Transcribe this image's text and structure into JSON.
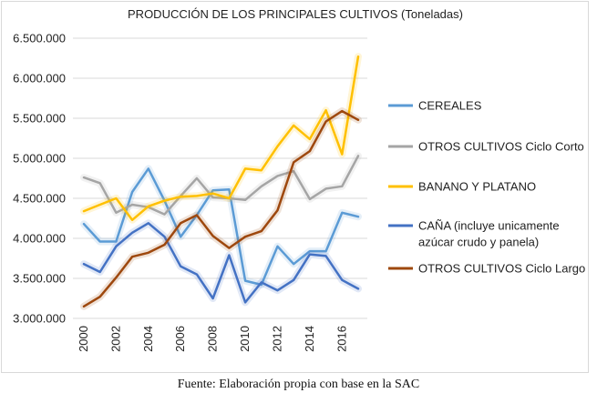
{
  "chart_data": {
    "type": "line",
    "title": "PRODUCCIÓN DE LOS PRINCIPALES CULTIVOS (Toneladas)",
    "x": [
      2000,
      2001,
      2002,
      2003,
      2004,
      2005,
      2006,
      2007,
      2008,
      2009,
      2010,
      2011,
      2012,
      2013,
      2014,
      2015,
      2016,
      2017
    ],
    "xticks": [
      "2000",
      "2002",
      "2004",
      "2006",
      "2008",
      "2010",
      "2012",
      "2014",
      "2016"
    ],
    "ylim": [
      3000000,
      6500000
    ],
    "yticks": [
      "3.000.000",
      "3.500.000",
      "4.000.000",
      "4.500.000",
      "5.000.000",
      "5.500.000",
      "6.000.000",
      "6.500.000"
    ],
    "grid": true,
    "legend_position": "right",
    "series": [
      {
        "name": "CEREALES",
        "color": "#5b9bd5",
        "values": [
          4180000,
          3960000,
          3960000,
          4580000,
          4870000,
          4470000,
          4020000,
          4290000,
          4600000,
          4610000,
          3470000,
          3420000,
          3900000,
          3680000,
          3840000,
          3840000,
          4320000,
          4270000
        ]
      },
      {
        "name": "OTROS CULTIVOS Ciclo Corto",
        "color": "#a5a5a5",
        "values": [
          4760000,
          4690000,
          4320000,
          4420000,
          4390000,
          4300000,
          4530000,
          4750000,
          4510000,
          4500000,
          4480000,
          4650000,
          4780000,
          4840000,
          4490000,
          4620000,
          4650000,
          5030000
        ]
      },
      {
        "name": "BANANO Y PLATANO",
        "color": "#ffc000",
        "values": [
          4340000,
          4420000,
          4500000,
          4230000,
          4400000,
          4470000,
          4520000,
          4530000,
          4560000,
          4500000,
          4870000,
          4850000,
          5150000,
          5410000,
          5240000,
          5600000,
          5050000,
          6270000
        ]
      },
      {
        "name": "CAÑA (incluye unicamente azúcar crudo y panela)",
        "color": "#4472c4",
        "values": [
          3680000,
          3580000,
          3900000,
          4070000,
          4190000,
          4020000,
          3650000,
          3550000,
          3250000,
          3790000,
          3200000,
          3450000,
          3350000,
          3480000,
          3800000,
          3780000,
          3480000,
          3370000
        ]
      },
      {
        "name": "OTROS CULTIVOS Ciclo Largo",
        "color": "#9e480e",
        "values": [
          3150000,
          3270000,
          3510000,
          3770000,
          3820000,
          3920000,
          4190000,
          4290000,
          4030000,
          3880000,
          4020000,
          4090000,
          4350000,
          4950000,
          5090000,
          5460000,
          5590000,
          5480000
        ]
      }
    ],
    "legend_labels": [
      [
        "CEREALES"
      ],
      [
        "OTROS CULTIVOS Ciclo Corto"
      ],
      [
        "BANANO Y PLATANO"
      ],
      [
        "CAÑA (incluye unicamente",
        "azúcar crudo y panela)"
      ],
      [
        "OTROS CULTIVOS Ciclo Largo"
      ]
    ]
  },
  "source_note": "Fuente: Elaboración propia con base en la SAC"
}
